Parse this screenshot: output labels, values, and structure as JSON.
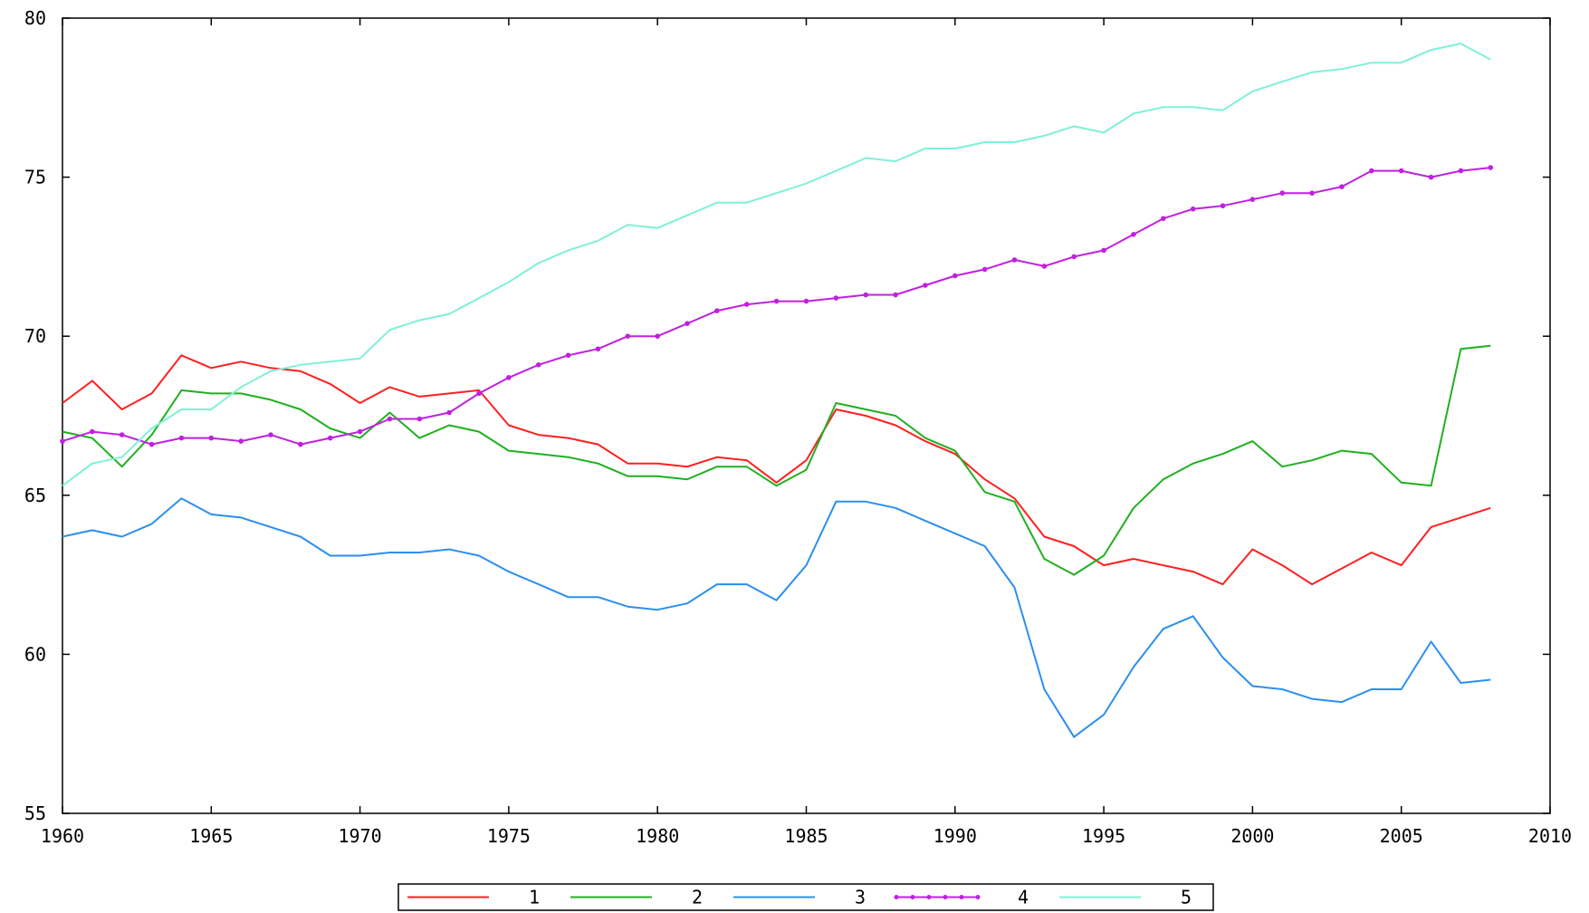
{
  "chart_data": {
    "type": "line",
    "title": "",
    "xlabel": "",
    "ylabel": "",
    "xlim": [
      1960,
      2010
    ],
    "ylim": [
      55,
      80
    ],
    "x_ticks": [
      1960,
      1965,
      1970,
      1975,
      1980,
      1985,
      1990,
      1995,
      2000,
      2005,
      2010
    ],
    "y_ticks": [
      55,
      60,
      65,
      70,
      75,
      80
    ],
    "x_tick_labels": [
      "1960",
      "1965",
      "1970",
      "1975",
      "1980",
      "1985",
      "1990",
      "1995",
      "2000",
      "2005",
      "2010"
    ],
    "y_tick_labels": [
      "55",
      "60",
      "65",
      "70",
      "75",
      "80"
    ],
    "grid": false,
    "legend_position": "bottom-center",
    "x": [
      1960,
      1961,
      1962,
      1963,
      1964,
      1965,
      1966,
      1967,
      1968,
      1969,
      1970,
      1971,
      1972,
      1973,
      1974,
      1975,
      1976,
      1977,
      1978,
      1979,
      1980,
      1981,
      1982,
      1983,
      1984,
      1985,
      1986,
      1987,
      1988,
      1989,
      1990,
      1991,
      1992,
      1993,
      1994,
      1995,
      1996,
      1997,
      1998,
      1999,
      2000,
      2001,
      2002,
      2003,
      2004,
      2005,
      2006,
      2007,
      2008
    ],
    "series": [
      {
        "name": "1",
        "color": "#ff2020",
        "markers": false,
        "values": [
          67.9,
          68.6,
          67.7,
          68.2,
          69.4,
          69.0,
          69.2,
          69.0,
          68.9,
          68.5,
          67.9,
          68.4,
          68.1,
          68.2,
          68.3,
          67.2,
          66.9,
          66.8,
          66.6,
          66.0,
          66.0,
          65.9,
          66.2,
          66.1,
          65.4,
          66.1,
          67.7,
          67.5,
          67.2,
          66.7,
          66.3,
          65.5,
          64.9,
          63.7,
          63.4,
          62.8,
          63.0,
          62.8,
          62.6,
          62.2,
          63.3,
          62.8,
          62.2,
          62.7,
          63.2,
          62.8,
          64.0,
          64.3,
          64.6
        ]
      },
      {
        "name": "2",
        "color": "#20b020",
        "markers": false,
        "values": [
          67.0,
          66.8,
          65.9,
          66.9,
          68.3,
          68.2,
          68.2,
          68.0,
          67.7,
          67.1,
          66.8,
          67.6,
          66.8,
          67.2,
          67.0,
          66.4,
          66.3,
          66.2,
          66.0,
          65.6,
          65.6,
          65.5,
          65.9,
          65.9,
          65.3,
          65.8,
          67.9,
          67.7,
          67.5,
          66.8,
          66.4,
          65.1,
          64.8,
          63.0,
          62.5,
          63.1,
          64.6,
          65.5,
          66.0,
          66.3,
          66.7,
          65.9,
          66.1,
          66.4,
          66.3,
          65.4,
          65.3,
          69.6,
          69.7
        ]
      },
      {
        "name": "3",
        "color": "#2b8fef",
        "markers": false,
        "values": [
          63.7,
          63.9,
          63.7,
          64.1,
          64.9,
          64.4,
          64.3,
          64.0,
          63.7,
          63.1,
          63.1,
          63.2,
          63.2,
          63.3,
          63.1,
          62.6,
          62.2,
          61.8,
          61.8,
          61.5,
          61.4,
          61.6,
          62.2,
          62.2,
          61.7,
          62.8,
          64.8,
          64.8,
          64.6,
          64.2,
          63.8,
          63.4,
          62.1,
          58.9,
          57.4,
          58.1,
          59.6,
          60.8,
          61.2,
          59.9,
          59.0,
          58.9,
          58.6,
          58.5,
          58.9,
          58.9,
          60.4,
          59.1,
          59.2
        ]
      },
      {
        "name": "4",
        "color": "#c020e0",
        "markers": true,
        "values": [
          66.7,
          67.0,
          66.9,
          66.6,
          66.8,
          66.8,
          66.7,
          66.9,
          66.6,
          66.8,
          67.0,
          67.4,
          67.4,
          67.6,
          68.2,
          68.7,
          69.1,
          69.4,
          69.6,
          70.0,
          70.0,
          70.4,
          70.8,
          71.0,
          71.1,
          71.1,
          71.2,
          71.3,
          71.3,
          71.6,
          71.9,
          72.1,
          72.4,
          72.2,
          72.5,
          72.7,
          73.2,
          73.7,
          74.0,
          74.1,
          74.3,
          74.5,
          74.5,
          74.7,
          75.2,
          75.2,
          75.0,
          75.2,
          75.3
        ]
      },
      {
        "name": "5",
        "color": "#7ff0d8",
        "markers": false,
        "values": [
          65.3,
          66.0,
          66.2,
          67.1,
          67.7,
          67.7,
          68.4,
          68.9,
          69.1,
          69.2,
          69.3,
          70.2,
          70.5,
          70.7,
          71.2,
          71.7,
          72.3,
          72.7,
          73.0,
          73.5,
          73.4,
          73.8,
          74.2,
          74.2,
          74.5,
          74.8,
          75.2,
          75.6,
          75.5,
          75.9,
          75.9,
          76.1,
          76.1,
          76.3,
          76.6,
          76.4,
          77.0,
          77.2,
          77.2,
          77.1,
          77.7,
          78.0,
          78.3,
          78.4,
          78.6,
          78.6,
          79.0,
          79.2,
          78.7
        ]
      }
    ]
  }
}
